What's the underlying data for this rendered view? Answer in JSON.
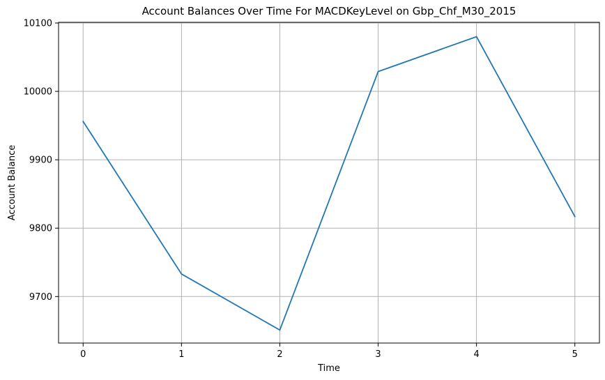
{
  "chart_data": {
    "type": "line",
    "title": "Account Balances Over Time For MACDKeyLevel on Gbp_Chf_M30_2015",
    "xlabel": "Time",
    "ylabel": "Account Balance",
    "x": [
      0,
      1,
      2,
      3,
      4,
      5
    ],
    "series": [
      {
        "values": [
          9956,
          9733,
          9651,
          10029,
          10080,
          9817
        ],
        "color": "#1f77b4"
      }
    ],
    "xlim": [
      -0.25,
      5.25
    ],
    "ylim": [
      9632,
      10101
    ],
    "xticks": [
      0,
      1,
      2,
      3,
      4,
      5
    ],
    "yticks": [
      9700,
      9800,
      9900,
      10000,
      10100
    ],
    "grid": true
  }
}
